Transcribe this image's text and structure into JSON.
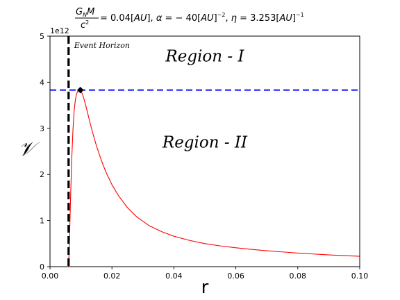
{
  "chart_data": {
    "type": "line",
    "title": {
      "lhs_numerator": "G",
      "lhs_numerator_sub": "N",
      "lhs_numerator_tail": "M",
      "lhs_denominator": "c",
      "lhs_denominator_sup": "2",
      "rest": "= 0.04[AU], α = −40[AU]−2, η = 3.253[AU]−1",
      "part1": " = 0.04[",
      "part1_unit": "AU",
      "part2": "], ",
      "alpha": "α",
      "part3": " = − 40[",
      "part3_unit": "AU",
      "part4": "]",
      "part4_sup": "−2",
      "part5": ", ",
      "eta": "η",
      "part6": " = 3.253[",
      "part6_unit": "AU",
      "part7": "]",
      "part7_sup": "−1"
    },
    "xlabel": "r",
    "ylabel": "𝒱",
    "y_offset_text": "1e12",
    "xlim": [
      0.0,
      0.1
    ],
    "ylim": [
      0,
      5
    ],
    "x_ticks": [
      "0.00",
      "0.02",
      "0.04",
      "0.06",
      "0.08",
      "0.10"
    ],
    "x_tick_values": [
      0.0,
      0.02,
      0.04,
      0.06,
      0.08,
      0.1
    ],
    "y_ticks": [
      "0",
      "1",
      "2",
      "3",
      "4",
      "5"
    ],
    "y_tick_values": [
      0,
      1,
      2,
      3,
      4,
      5
    ],
    "grid": false,
    "series": [
      {
        "color": "#ff0000",
        "x": [
          0.006,
          0.0063,
          0.0066,
          0.007,
          0.0074,
          0.0078,
          0.0082,
          0.0086,
          0.009,
          0.0094,
          0.0098,
          0.0102,
          0.0106,
          0.011,
          0.0116,
          0.0122,
          0.013,
          0.014,
          0.015,
          0.0165,
          0.018,
          0.02,
          0.022,
          0.025,
          0.028,
          0.032,
          0.036,
          0.04,
          0.045,
          0.05,
          0.055,
          0.06,
          0.065,
          0.07,
          0.075,
          0.08,
          0.085,
          0.09,
          0.095,
          0.1
        ],
        "values": [
          0.0,
          0.6,
          1.4,
          2.3,
          2.95,
          3.38,
          3.62,
          3.75,
          3.81,
          3.83,
          3.82,
          3.78,
          3.72,
          3.63,
          3.48,
          3.32,
          3.1,
          2.85,
          2.62,
          2.32,
          2.06,
          1.78,
          1.55,
          1.28,
          1.08,
          0.89,
          0.76,
          0.66,
          0.57,
          0.5,
          0.45,
          0.41,
          0.375,
          0.345,
          0.32,
          0.295,
          0.275,
          0.255,
          0.24,
          0.225
        ]
      }
    ],
    "event_horizon": {
      "x": 0.006,
      "label": "Event Horizon",
      "color": "#000000"
    },
    "peak": {
      "x": 0.0098,
      "y": 3.83
    },
    "horizontal_line": {
      "y": 3.83,
      "color": "#0000ff"
    },
    "annotations": [
      {
        "text": "Region - I",
        "x": 0.05,
        "y": 4.45
      },
      {
        "text": "Region - II",
        "x": 0.05,
        "y": 2.58
      }
    ]
  }
}
